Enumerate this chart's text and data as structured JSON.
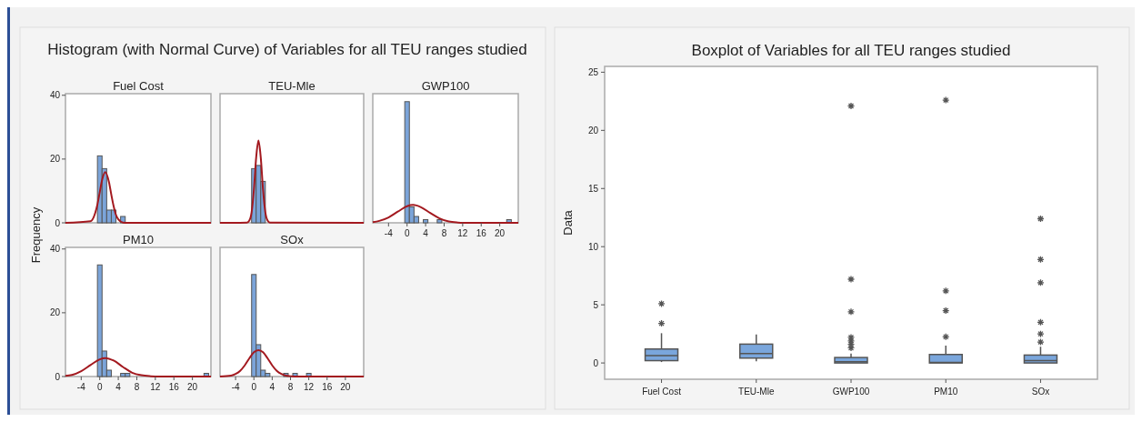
{
  "chart_data": [
    {
      "type": "histogram",
      "title": "Fuel Cost",
      "ylabel": "Frequency",
      "annotations": [
        "Histogram (with Normal Curve) of Variables for all TEU ranges studied"
      ],
      "xlim": [
        -7.4,
        24
      ],
      "ylim": [
        0,
        40.5
      ],
      "yticks": [
        0,
        20,
        40
      ],
      "tick_labels": "y",
      "series": [
        {
          "type": "histogram",
          "color": "#7ba4d9",
          "bins": [
            -0.5,
            0.5,
            1.5,
            2.5,
            3.5,
            4.5,
            5.5
          ],
          "values": [
            21,
            17,
            4,
            4,
            0,
            2
          ]
        },
        {
          "type": "line",
          "color": "#a3191f",
          "x": [
            -7.4,
            -2,
            -1,
            -0.5,
            0,
            0.5,
            1.2,
            2,
            2.5,
            3,
            3.5,
            4,
            5,
            6,
            24
          ],
          "values": [
            0,
            0.5,
            3,
            5.8,
            9.6,
            13.4,
            15.9,
            12.7,
            8.8,
            5.2,
            2.5,
            1.1,
            0.1,
            0,
            0
          ]
        }
      ]
    },
    {
      "type": "histogram",
      "title": "TEU-Mle",
      "xlim": [
        -7.4,
        24
      ],
      "ylim": [
        0,
        40.5
      ],
      "tick_labels": false,
      "series": [
        {
          "type": "histogram",
          "color": "#7ba4d9",
          "bins": [
            -0.5,
            0.5,
            1.5,
            2.5
          ],
          "values": [
            17,
            18,
            13
          ]
        },
        {
          "type": "line",
          "color": "#a3191f",
          "x": [
            -7.4,
            -1.5,
            -1,
            -0.5,
            0,
            0.5,
            1,
            1.5,
            2,
            2.5,
            3,
            3.5,
            24
          ],
          "values": [
            0,
            0.1,
            0.7,
            3.3,
            10.4,
            20.5,
            25.8,
            20.5,
            10.4,
            3.3,
            0.7,
            0.1,
            0
          ]
        }
      ]
    },
    {
      "type": "histogram",
      "title": "GWP100",
      "xlim": [
        -7.4,
        24
      ],
      "xticks": [
        -4,
        0,
        4,
        8,
        12,
        16,
        20
      ],
      "ylim": [
        0,
        40.5
      ],
      "tick_labels": "x",
      "series": [
        {
          "type": "histogram",
          "color": "#7ba4d9",
          "bins": [
            -0.5,
            0.5,
            1.5,
            2.5,
            3.5,
            4.5,
            5.5,
            6.5,
            7.5,
            8.5,
            9.5,
            10.5,
            11.5,
            12.5,
            13.5,
            14.5,
            15.5,
            16.5,
            17.5,
            18.5,
            19.5,
            20.5,
            21.5,
            22.5
          ],
          "values": [
            38,
            5,
            2,
            0,
            1,
            0,
            0,
            1,
            0,
            0,
            0,
            0,
            0,
            0,
            0,
            0,
            0,
            0,
            0,
            0,
            0,
            0,
            1
          ]
        },
        {
          "type": "line",
          "color": "#a3191f",
          "x": [
            -7.4,
            -6,
            -4,
            -2,
            0,
            1.3,
            3,
            5,
            7,
            9,
            11,
            13,
            24
          ],
          "values": [
            0.2,
            0.6,
            1.7,
            3.5,
            5.2,
            5.6,
            4.9,
            3.1,
            1.4,
            0.4,
            0.1,
            0,
            0
          ]
        }
      ]
    },
    {
      "type": "histogram",
      "title": "PM10",
      "xlim": [
        -7.4,
        24
      ],
      "xticks": [
        -4,
        0,
        4,
        8,
        12,
        16,
        20
      ],
      "ylim": [
        0,
        40.5
      ],
      "yticks": [
        0,
        20,
        40
      ],
      "series": [
        {
          "type": "histogram",
          "color": "#7ba4d9",
          "bins": [
            -0.5,
            0.5,
            1.5,
            2.5,
            3.5,
            4.5,
            5.5,
            6.5,
            7.5,
            8.5,
            9.5,
            10.5,
            11.5,
            12.5,
            13.5,
            14.5,
            15.5,
            16.5,
            17.5,
            18.5,
            19.5,
            20.5,
            21.5,
            22.5,
            23.5
          ],
          "values": [
            35,
            8,
            2,
            0,
            0,
            1,
            1,
            0,
            0,
            0,
            0,
            0,
            0,
            0,
            0,
            0,
            0,
            0,
            0,
            0,
            0,
            0,
            0,
            1
          ]
        },
        {
          "type": "line",
          "color": "#a3191f",
          "x": [
            -7.4,
            -6,
            -4,
            -2,
            0,
            1.2,
            3,
            5,
            7,
            9,
            11,
            13,
            24
          ],
          "values": [
            0.2,
            0.5,
            1.7,
            3.6,
            5.4,
            5.8,
            5,
            3,
            1.2,
            0.4,
            0.1,
            0,
            0
          ]
        }
      ]
    },
    {
      "type": "histogram",
      "title": "SOx",
      "xlim": [
        -7.4,
        24
      ],
      "xticks": [
        -4,
        0,
        4,
        8,
        12,
        16,
        20
      ],
      "ylim": [
        0,
        40.5
      ],
      "tick_labels": "x",
      "series": [
        {
          "type": "histogram",
          "color": "#7ba4d9",
          "bins": [
            -0.5,
            0.5,
            1.5,
            2.5,
            3.5,
            4.5,
            5.5,
            6.5,
            7.5,
            8.5,
            9.5,
            10.5,
            11.5,
            12.5
          ],
          "values": [
            32,
            10,
            2,
            1,
            0,
            0,
            0,
            1,
            0,
            1,
            0,
            0,
            1
          ]
        },
        {
          "type": "line",
          "color": "#a3191f",
          "x": [
            -7.4,
            -5,
            -4,
            -3,
            -2,
            -1,
            0,
            1,
            2,
            3,
            4,
            5,
            6,
            7,
            9,
            24
          ],
          "values": [
            0,
            0.3,
            0.8,
            1.8,
            3.5,
            5.7,
            7.6,
            8.3,
            7.6,
            5.7,
            3.5,
            1.8,
            0.8,
            0.3,
            0,
            0
          ]
        }
      ]
    },
    {
      "type": "box",
      "title": "Boxplot of Variables for all TEU ranges studied",
      "ylabel": "Data",
      "color": "#7aa6dc",
      "categories": [
        "Fuel Cost",
        "TEU-Mle",
        "GWP100",
        "PM10",
        "SOx"
      ],
      "ylim": [
        -1.4,
        25.5
      ],
      "yticks": [
        0,
        5,
        10,
        15,
        20,
        25
      ],
      "boxes": [
        {
          "low": 0.08,
          "q1": 0.2,
          "median": 0.63,
          "q3": 1.2,
          "high": 2.56,
          "outliers": [
            3.4,
            5.1
          ]
        },
        {
          "low": 0.15,
          "q1": 0.42,
          "median": 0.8,
          "q3": 1.62,
          "high": 2.45
        },
        {
          "low": 0,
          "q1": 0,
          "median": 0.1,
          "q3": 0.47,
          "high": 0.8,
          "outliers": [
            1.3,
            1.6,
            1.9,
            2.2,
            4.4,
            7.2,
            22.1
          ]
        },
        {
          "low": 0,
          "q1": 0,
          "median": 0.05,
          "q3": 0.73,
          "high": 1.5,
          "outliers": [
            2.25,
            4.5,
            6.2,
            22.6
          ]
        },
        {
          "low": 0,
          "q1": 0,
          "median": 0.2,
          "q3": 0.68,
          "high": 1.4,
          "outliers": [
            1.8,
            2.5,
            3.5,
            6.9,
            8.9,
            12.4
          ]
        }
      ]
    }
  ]
}
